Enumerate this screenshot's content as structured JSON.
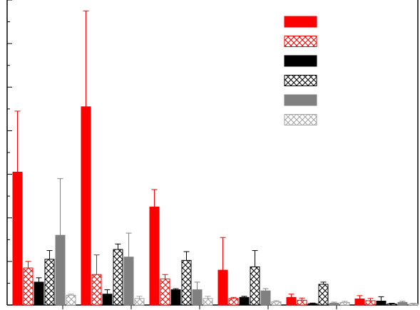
{
  "chart_data": {
    "type": "bar",
    "title": "",
    "xlabel": "",
    "ylabel": "",
    "ylim": [
      0,
      14
    ],
    "categories": [
      "",
      "",
      "",
      "",
      "",
      ""
    ],
    "series": [
      {
        "fill": "solid",
        "color": "#ff0000",
        "values": [
          6.1,
          9.1,
          4.5,
          1.6,
          0.35,
          0.28
        ],
        "errors": [
          2.8,
          4.4,
          0.8,
          1.5,
          0.15,
          0.15
        ]
      },
      {
        "fill": "hatch",
        "color": "#ff0000",
        "values": [
          1.7,
          1.4,
          1.2,
          0.3,
          0.22,
          0.2
        ],
        "errors": [
          0.3,
          0.9,
          0.2,
          0.05,
          0.1,
          0.1
        ]
      },
      {
        "fill": "solid",
        "color": "#000000",
        "values": [
          1.05,
          0.5,
          0.7,
          0.35,
          0.06,
          0.18
        ],
        "errors": [
          0.2,
          0.2,
          0.05,
          0.05,
          0.03,
          0.2
        ]
      },
      {
        "fill": "hatch",
        "color": "#000000",
        "values": [
          2.1,
          2.55,
          2.05,
          1.75,
          0.95,
          0.05
        ],
        "errors": [
          0.4,
          0.25,
          0.4,
          0.75,
          0.1,
          0.03
        ]
      },
      {
        "fill": "solid",
        "color": "#808080",
        "values": [
          3.2,
          2.2,
          0.7,
          0.65,
          0.08,
          0.12
        ],
        "errors": [
          2.6,
          1.1,
          0.35,
          0.1,
          0.05,
          0.05
        ]
      },
      {
        "fill": "hatch",
        "color": "#a0a0a0",
        "values": [
          0.45,
          0.3,
          0.3,
          0.15,
          0.12,
          0.05
        ],
        "errors": [
          0.05,
          0.1,
          0.1,
          0.05,
          0.05,
          0.03
        ]
      }
    ],
    "legend_position": "top-right",
    "grid": false
  }
}
